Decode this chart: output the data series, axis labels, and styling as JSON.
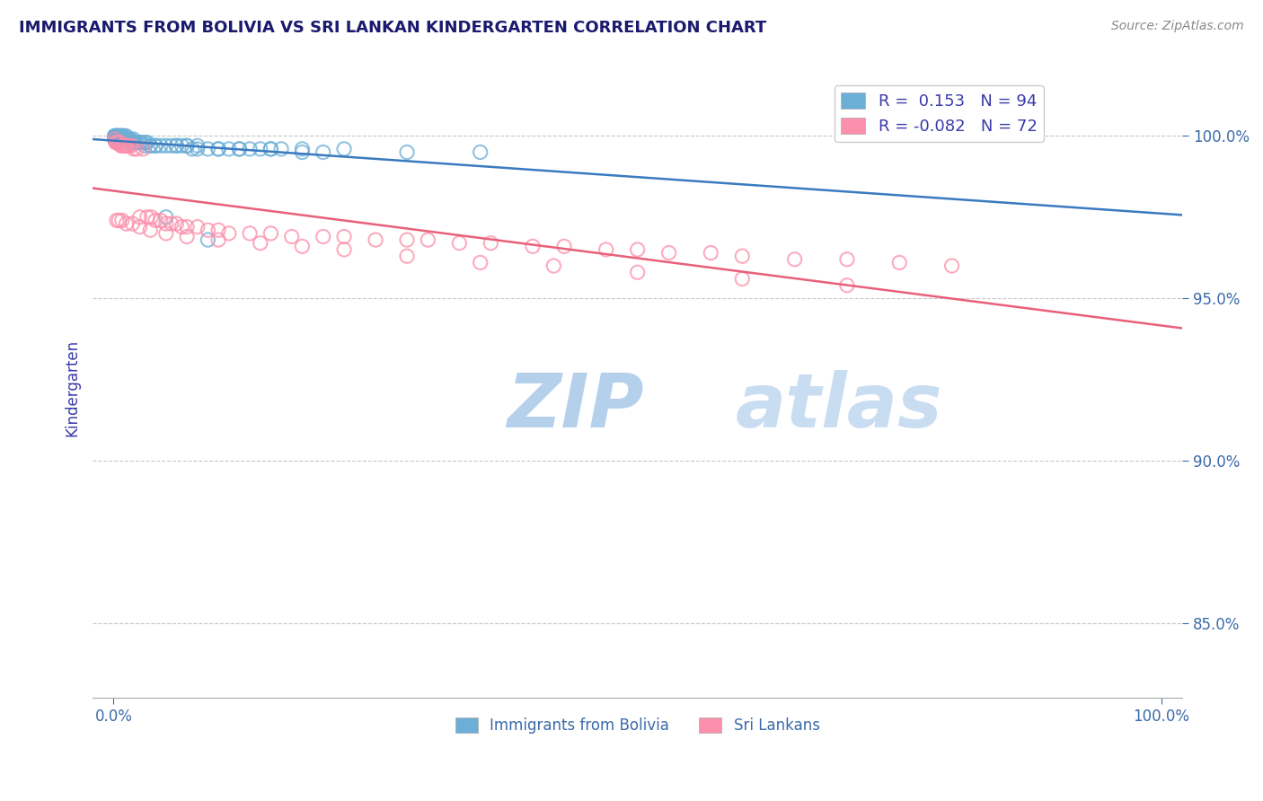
{
  "title": "IMMIGRANTS FROM BOLIVIA VS SRI LANKAN KINDERGARTEN CORRELATION CHART",
  "source": "Source: ZipAtlas.com",
  "ylabel": "Kindergarten",
  "x_tick_labels": [
    "0.0%",
    "100.0%"
  ],
  "y_tick_labels": [
    "85.0%",
    "90.0%",
    "95.0%",
    "100.0%"
  ],
  "y_min": 0.827,
  "y_max": 1.018,
  "x_min": -0.02,
  "x_max": 1.02,
  "bolivia_R": 0.153,
  "bolivia_N": 94,
  "srilanka_R": -0.082,
  "srilanka_N": 72,
  "bolivia_color": "#6baed6",
  "srilanka_color": "#fc8fab",
  "bolivia_line_color": "#3a7abf",
  "srilanka_line_color": "#e8607a",
  "watermark_zip_color": "#b8d4ed",
  "watermark_atlas_color": "#c8dff0",
  "grid_color": "#c8c8c8",
  "title_color": "#1a1a6e",
  "axis_label_color": "#3a3aaa",
  "tick_color": "#3a6aaa",
  "background_color": "#ffffff",
  "bolivia_x": [
    0.001,
    0.001,
    0.001,
    0.002,
    0.002,
    0.002,
    0.002,
    0.003,
    0.003,
    0.003,
    0.003,
    0.004,
    0.004,
    0.004,
    0.004,
    0.005,
    0.005,
    0.005,
    0.006,
    0.006,
    0.006,
    0.007,
    0.007,
    0.007,
    0.008,
    0.008,
    0.009,
    0.009,
    0.01,
    0.01,
    0.011,
    0.012,
    0.012,
    0.013,
    0.014,
    0.015,
    0.016,
    0.018,
    0.019,
    0.02,
    0.022,
    0.025,
    0.027,
    0.03,
    0.032,
    0.035,
    0.04,
    0.045,
    0.05,
    0.055,
    0.06,
    0.065,
    0.07,
    0.075,
    0.08,
    0.09,
    0.1,
    0.11,
    0.12,
    0.13,
    0.14,
    0.15,
    0.16,
    0.18,
    0.2,
    0.001,
    0.002,
    0.003,
    0.004,
    0.005,
    0.006,
    0.007,
    0.008,
    0.01,
    0.012,
    0.015,
    0.018,
    0.02,
    0.025,
    0.03,
    0.035,
    0.04,
    0.05,
    0.06,
    0.07,
    0.08,
    0.09,
    0.1,
    0.12,
    0.15,
    0.18,
    0.22,
    0.28,
    0.35
  ],
  "bolivia_y": [
    1.0,
    1.0,
    0.999,
    1.0,
    1.0,
    0.999,
    0.999,
    1.0,
    1.0,
    0.999,
    0.998,
    1.0,
    1.0,
    0.999,
    0.999,
    1.0,
    1.0,
    0.999,
    1.0,
    1.0,
    0.999,
    1.0,
    1.0,
    0.999,
    1.0,
    0.999,
    1.0,
    0.999,
    1.0,
    0.999,
    0.999,
    1.0,
    0.999,
    0.999,
    0.999,
    0.999,
    0.999,
    0.998,
    0.999,
    0.998,
    0.998,
    0.998,
    0.998,
    0.998,
    0.998,
    0.997,
    0.997,
    0.997,
    0.997,
    0.997,
    0.997,
    0.997,
    0.997,
    0.996,
    0.996,
    0.996,
    0.996,
    0.996,
    0.996,
    0.996,
    0.996,
    0.996,
    0.996,
    0.995,
    0.995,
    0.999,
    0.999,
    0.999,
    0.999,
    0.999,
    0.999,
    0.999,
    0.999,
    0.999,
    0.998,
    0.998,
    0.998,
    0.998,
    0.998,
    0.997,
    0.997,
    0.997,
    0.975,
    0.997,
    0.997,
    0.997,
    0.968,
    0.996,
    0.996,
    0.996,
    0.996,
    0.996,
    0.995,
    0.995
  ],
  "srilanka_x": [
    0.001,
    0.002,
    0.003,
    0.004,
    0.005,
    0.006,
    0.007,
    0.008,
    0.009,
    0.01,
    0.011,
    0.012,
    0.013,
    0.015,
    0.017,
    0.019,
    0.022,
    0.025,
    0.028,
    0.032,
    0.036,
    0.04,
    0.045,
    0.05,
    0.055,
    0.06,
    0.065,
    0.07,
    0.08,
    0.09,
    0.1,
    0.11,
    0.13,
    0.15,
    0.17,
    0.2,
    0.22,
    0.25,
    0.28,
    0.3,
    0.33,
    0.36,
    0.4,
    0.43,
    0.47,
    0.5,
    0.53,
    0.57,
    0.6,
    0.65,
    0.7,
    0.75,
    0.8,
    0.003,
    0.005,
    0.008,
    0.012,
    0.018,
    0.025,
    0.035,
    0.05,
    0.07,
    0.1,
    0.14,
    0.18,
    0.22,
    0.28,
    0.35,
    0.42,
    0.5,
    0.6,
    0.7
  ],
  "srilanka_y": [
    0.999,
    0.998,
    0.998,
    0.998,
    0.998,
    0.998,
    0.997,
    0.997,
    0.997,
    0.997,
    0.997,
    0.997,
    0.997,
    0.997,
    0.997,
    0.996,
    0.996,
    0.975,
    0.996,
    0.975,
    0.975,
    0.974,
    0.974,
    0.973,
    0.973,
    0.973,
    0.972,
    0.972,
    0.972,
    0.971,
    0.971,
    0.97,
    0.97,
    0.97,
    0.969,
    0.969,
    0.969,
    0.968,
    0.968,
    0.968,
    0.967,
    0.967,
    0.966,
    0.966,
    0.965,
    0.965,
    0.964,
    0.964,
    0.963,
    0.962,
    0.962,
    0.961,
    0.96,
    0.974,
    0.974,
    0.974,
    0.973,
    0.973,
    0.972,
    0.971,
    0.97,
    0.969,
    0.968,
    0.967,
    0.966,
    0.965,
    0.963,
    0.961,
    0.96,
    0.958,
    0.956,
    0.954
  ]
}
